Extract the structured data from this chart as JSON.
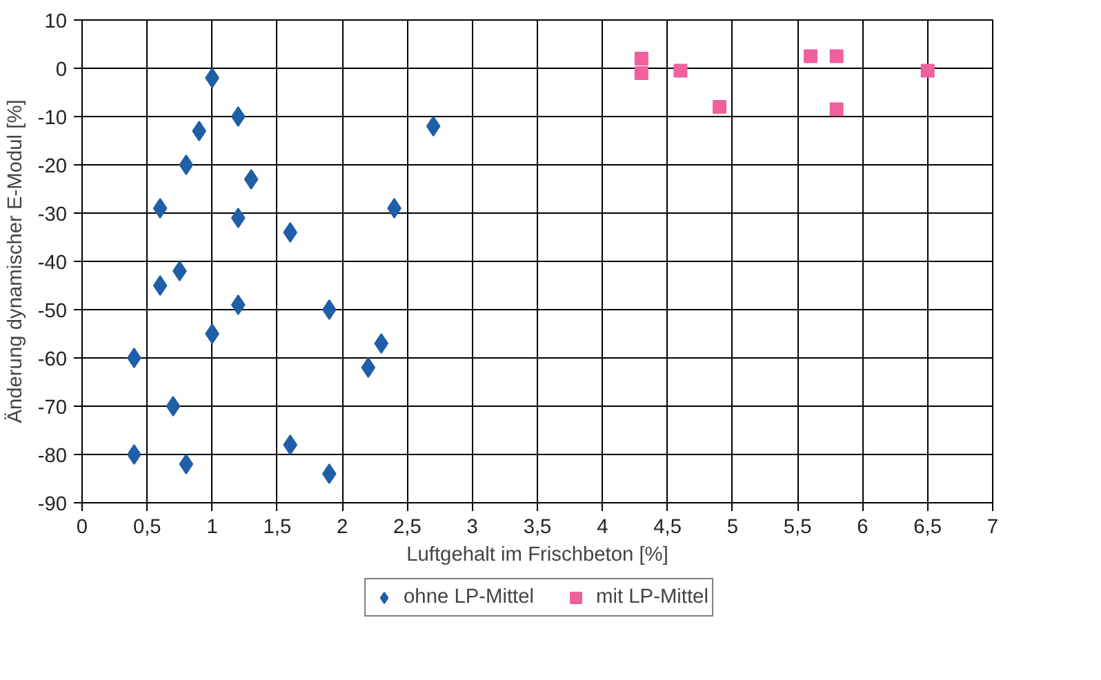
{
  "chart_data": {
    "type": "scatter",
    "xlabel": "Luftgehalt im Frischbeton [%]",
    "ylabel": "Änderung dynamischer E-Modul [%]",
    "xlim": [
      0,
      7
    ],
    "ylim": [
      -90,
      10
    ],
    "xticks": [
      0,
      {
        "value": 0.5,
        "label": "0,5"
      },
      1,
      {
        "value": 1.5,
        "label": "1,5"
      },
      2,
      {
        "value": 2.5,
        "label": "2,5"
      },
      3,
      {
        "value": 3.5,
        "label": "3,5"
      },
      4,
      {
        "value": 4.5,
        "label": "4,5"
      },
      5,
      {
        "value": 5.5,
        "label": "5,5"
      },
      6,
      {
        "value": 6.5,
        "label": "6,5"
      },
      7
    ],
    "yticks": [
      -90,
      -80,
      -70,
      -60,
      -50,
      -40,
      -30,
      -20,
      -10,
      0,
      10
    ],
    "grid": true,
    "legend": "bottom",
    "series": [
      {
        "name": "ohne LP-Mittel",
        "color": "#1f5fa8",
        "marker": "diamond",
        "x": [
          1.0,
          1.2,
          0.9,
          0.8,
          1.3,
          0.6,
          1.2,
          1.6,
          0.75,
          0.6,
          1.2,
          1.9,
          1.0,
          2.3,
          2.2,
          0.4,
          0.7,
          1.6,
          0.4,
          0.8,
          1.9,
          2.4,
          2.7
        ],
        "values": [
          -2,
          -10,
          -13,
          -20,
          -23,
          -29,
          -31,
          -34,
          -42,
          -45,
          -49,
          -50,
          -55,
          -57,
          -62,
          -60,
          -70,
          -78,
          -80,
          -82,
          -84,
          -29,
          -12
        ]
      },
      {
        "name": "mit LP-Mittel",
        "color": "#f0609e",
        "marker": "square",
        "x": [
          4.3,
          4.3,
          4.6,
          4.9,
          5.6,
          5.8,
          5.8,
          6.5
        ],
        "values": [
          2,
          -1,
          -0.5,
          -8,
          2.5,
          2.5,
          -8.5,
          -0.5
        ]
      }
    ]
  }
}
